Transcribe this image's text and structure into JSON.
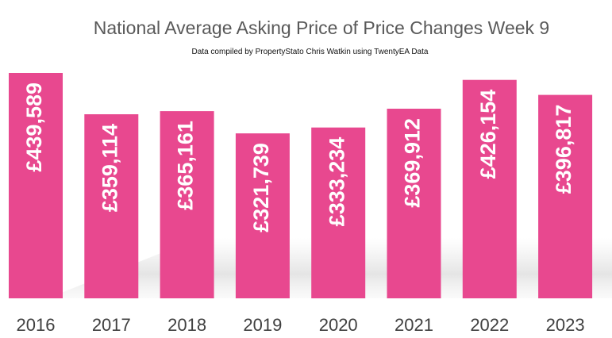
{
  "chart_data": {
    "type": "bar",
    "title": "National Average Asking Price of Price Changes Week 9",
    "subtitle": "Data compiled by PropertyStato Chris Watkin using TwentyEA Data",
    "categories": [
      "2016",
      "2017",
      "2018",
      "2019",
      "2020",
      "2021",
      "2022",
      "2023"
    ],
    "values": [
      439589,
      359114,
      365161,
      321739,
      333234,
      369912,
      426154,
      396817
    ],
    "data_labels": [
      "£439,589",
      "£359,114",
      "£365,161",
      "£321,739",
      "£333,234",
      "£369,912",
      "£426,154",
      "£396,817"
    ],
    "xlabel": "",
    "ylabel": "",
    "bar_color": "#E8488F",
    "grid": false,
    "legend": "none"
  }
}
